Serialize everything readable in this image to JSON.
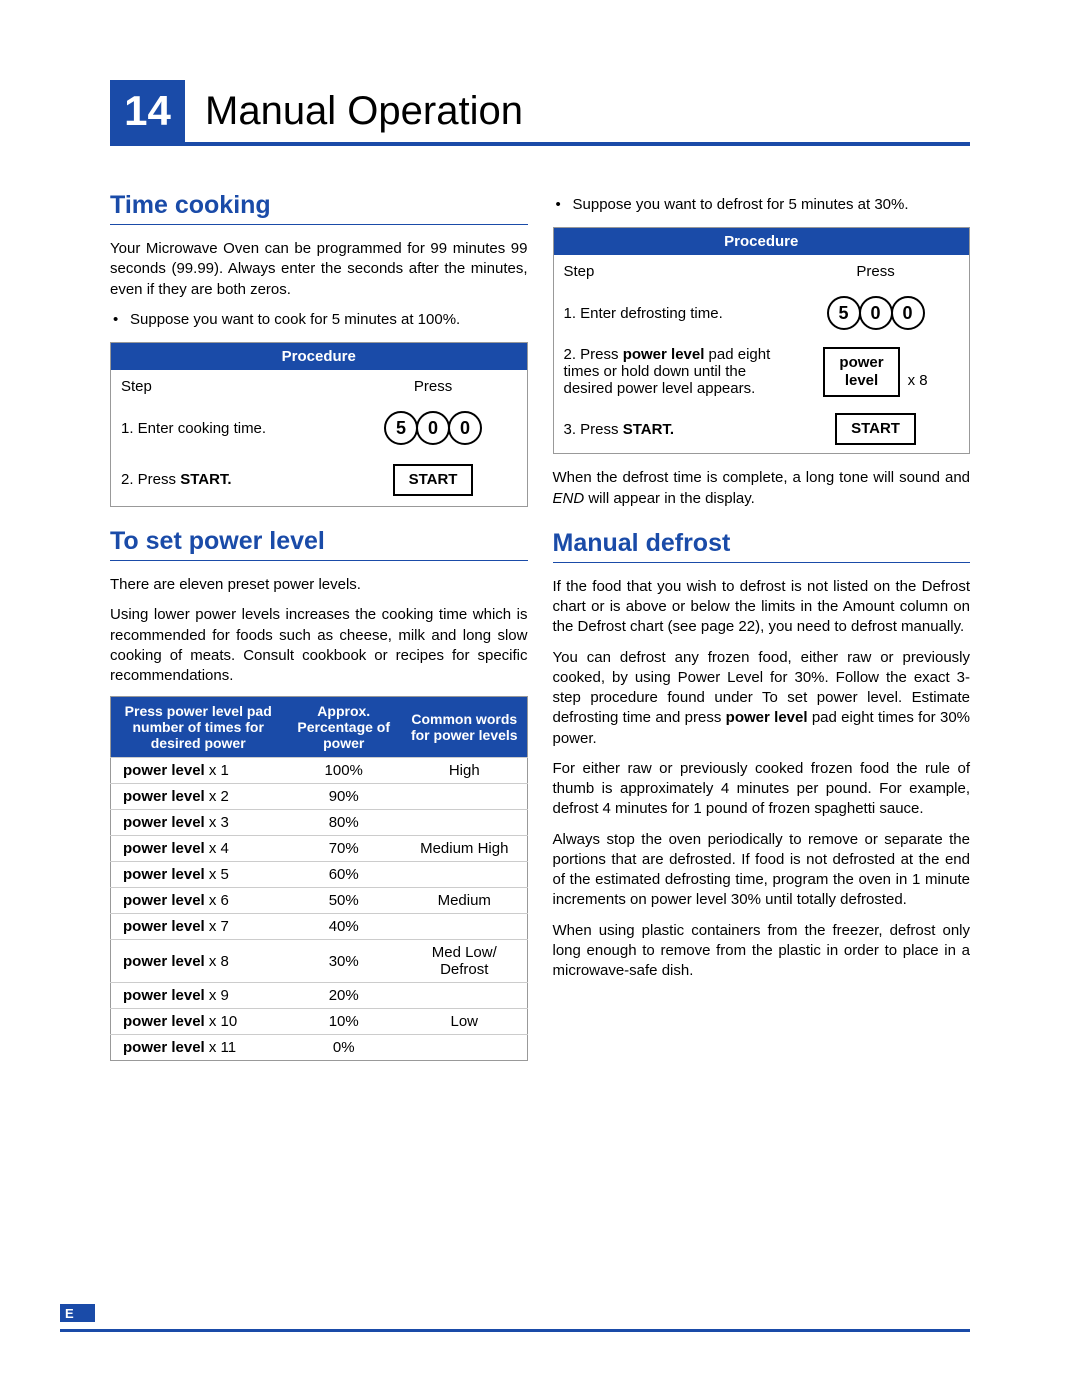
{
  "page_number": "14",
  "page_title": "Manual Operation",
  "section1": {
    "heading": "Time cooking",
    "p1": "Your Microwave Oven can be programmed for 99 minutes 99 seconds (99.99). Always enter the seconds after the minutes, even if they are both zeros.",
    "bullet": "Suppose you want to cook for 5 minutes at 100%.",
    "proc_header": "Procedure",
    "col_step": "Step",
    "col_press": "Press",
    "step1": "1. Enter cooking time.",
    "digit1": "5",
    "digit2": "0",
    "digit3": "0",
    "step2_pre": "2. Press ",
    "step2_bold": "START.",
    "start_btn": "START"
  },
  "section2": {
    "heading": "To set power level",
    "p1": "There are eleven preset power levels.",
    "p2": "Using lower power levels increases the cooking time which is recommended for foods such as cheese, milk and long slow cooking of meats. Consult cookbook or recipes for specific recommendations.",
    "table": {
      "h1": "Press power level pad number of times for desired power",
      "h2": "Approx. Percentage of power",
      "h3": "Common words for power levels",
      "rows": [
        {
          "label": "power level",
          "x": "x 1",
          "pct": "100%",
          "word": "High"
        },
        {
          "label": "power level",
          "x": "x 2",
          "pct": "90%",
          "word": ""
        },
        {
          "label": "power level",
          "x": "x 3",
          "pct": "80%",
          "word": ""
        },
        {
          "label": "power level",
          "x": "x 4",
          "pct": "70%",
          "word": "Medium High"
        },
        {
          "label": "power level",
          "x": "x 5",
          "pct": "60%",
          "word": ""
        },
        {
          "label": "power level",
          "x": "x 6",
          "pct": "50%",
          "word": "Medium"
        },
        {
          "label": "power level",
          "x": "x 7",
          "pct": "40%",
          "word": ""
        },
        {
          "label": "power level",
          "x": "x 8",
          "pct": "30%",
          "word": "Med Low/ Defrost"
        },
        {
          "label": "power level",
          "x": "x 9",
          "pct": "20%",
          "word": ""
        },
        {
          "label": "power level",
          "x": "x 10",
          "pct": "10%",
          "word": "Low"
        },
        {
          "label": "power level",
          "x": "x 11",
          "pct": "0%",
          "word": ""
        }
      ]
    }
  },
  "section3": {
    "bullet": "Suppose you want to defrost for 5 minutes at 30%.",
    "proc_header": "Procedure",
    "col_step": "Step",
    "col_press": "Press",
    "step1": "1. Enter defrosting time.",
    "digit1": "5",
    "digit2": "0",
    "digit3": "0",
    "step2_a": "2. Press ",
    "step2_bold": "power level",
    "step2_b": " pad eight times or hold down until the desired power level appears.",
    "pl_btn_l1": "power",
    "pl_btn_l2": "level",
    "x8": "x 8",
    "step3_a": "3. Press ",
    "step3_bold": "START.",
    "start_btn": "START",
    "p_after": "When the defrost time is complete, a long tone will sound and END will appear in the display."
  },
  "section4": {
    "heading": "Manual defrost",
    "p1": "If the food that you wish to defrost is not listed on the Defrost chart or is above or below the limits in the Amount column on the Defrost chart (see page 22), you need to defrost manually.",
    "p2a": "You can defrost any frozen food, either raw or previously cooked, by using Power Level for 30%. Follow the exact 3-step procedure found under To set power level. Estimate defrosting time and press ",
    "p2bold": "power level",
    "p2b": " pad eight times for 30% power.",
    "p3": "For either raw or previously cooked frozen food the rule of thumb is approximately 4 minutes per pound. For example, defrost 4 minutes for 1 pound of frozen spaghetti sauce.",
    "p4": "Always stop the oven periodically to remove or separate the portions that are defrosted. If food is not defrosted at the end of the estimated defrosting time, program the oven in 1 minute increments on power level 30% until totally defrosted.",
    "p5": "When using plastic containers from the freezer, defrost only long enough to remove from the plastic in order to place in a microwave-safe dish."
  },
  "footer_e": "E"
}
